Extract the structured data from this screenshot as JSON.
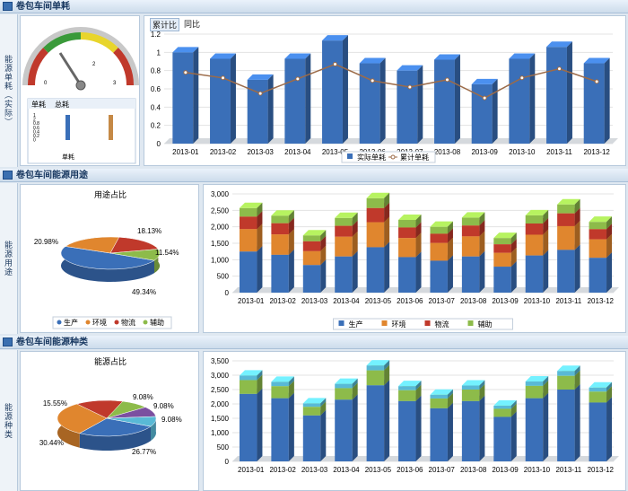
{
  "sections": [
    {
      "title": "卷包车间单耗",
      "side": "能源单耗（实际）"
    },
    {
      "title": "卷包车间能源用途",
      "side": "能源用途"
    },
    {
      "title": "卷包车间能源种类",
      "side": "能源种类"
    }
  ],
  "gauge": {
    "tabs": [
      "单耗",
      "总耗"
    ],
    "mini_label": "单耗",
    "min_label": "0",
    "max_label": "3",
    "mid_label": "2",
    "mini_ticks": [
      "1",
      "2",
      "0.8",
      "0.6",
      "0.4",
      "0.2",
      "0"
    ]
  },
  "top_tabs": [
    "累计比",
    "同比"
  ],
  "months": [
    "2013-01",
    "2013-02",
    "2013-03",
    "2013-04",
    "2013-05",
    "2013-06",
    "2013-07",
    "2013-08",
    "2013-09",
    "2013-10",
    "2013-11",
    "2013-12"
  ],
  "colors": {
    "blue": "#3a6fb8",
    "orange": "#e0862e",
    "red": "#c0392b",
    "green": "#8dbb4a",
    "cyan": "#59b9d6",
    "purple": "#7b4fa0",
    "line": "#9c6b48"
  },
  "chart_data": [
    {
      "type": "bar",
      "categories": [
        "2013-01",
        "2013-02",
        "2013-03",
        "2013-04",
        "2013-05",
        "2013-06",
        "2013-07",
        "2013-08",
        "2013-09",
        "2013-10",
        "2013-11",
        "2013-12"
      ],
      "series": [
        {
          "name": "实际单耗",
          "values": [
            1.0,
            0.93,
            0.7,
            0.93,
            1.13,
            0.88,
            0.8,
            0.92,
            0.65,
            0.93,
            1.06,
            0.88
          ]
        },
        {
          "name": "累计单耗",
          "values": [
            0.78,
            0.72,
            0.55,
            0.71,
            0.87,
            0.69,
            0.62,
            0.7,
            0.5,
            0.72,
            0.82,
            0.68
          ]
        }
      ],
      "yticks": [
        "0",
        "0.2",
        "0.4",
        "0.6",
        "0.8",
        "1",
        "1.2"
      ],
      "ylim": [
        0,
        1.2
      ],
      "legend": [
        "实际单耗",
        "累计单耗"
      ]
    },
    {
      "type": "pie",
      "title": "用途占比",
      "labels": [
        "生产",
        "环境",
        "物流",
        "辅助"
      ],
      "values": [
        49.34,
        20.98,
        18.13,
        11.54
      ],
      "value_labels": [
        "49.34%",
        "20.98%",
        "18.13%",
        "11.54%"
      ]
    },
    {
      "type": "bar",
      "categories": [
        "2013-01",
        "2013-02",
        "2013-03",
        "2013-04",
        "2013-05",
        "2013-06",
        "2013-07",
        "2013-08",
        "2013-09",
        "2013-10",
        "2013-11",
        "2013-12"
      ],
      "series": [
        {
          "name": "生产",
          "values": [
            1250,
            1150,
            840,
            1100,
            1380,
            1080,
            970,
            1100,
            790,
            1130,
            1300,
            1060
          ]
        },
        {
          "name": "环境",
          "values": [
            680,
            620,
            420,
            600,
            760,
            580,
            540,
            610,
            420,
            630,
            720,
            560
          ]
        },
        {
          "name": "物流",
          "values": [
            380,
            340,
            300,
            330,
            430,
            320,
            280,
            330,
            260,
            340,
            390,
            310
          ]
        },
        {
          "name": "辅助",
          "values": [
            260,
            230,
            180,
            240,
            300,
            230,
            210,
            240,
            190,
            250,
            270,
            220
          ]
        }
      ],
      "yticks": [
        "0",
        "500",
        "1,000",
        "1,500",
        "2,000",
        "2,500",
        "3,000"
      ],
      "ylim": [
        0,
        3000
      ],
      "legend": [
        "生产",
        "环境",
        "物流",
        "辅助"
      ]
    },
    {
      "type": "pie",
      "title": "能源占比",
      "values": [
        26.77,
        30.44,
        15.55,
        9.08,
        9.08,
        9.08
      ],
      "value_labels": [
        "26.77%",
        "30.44%",
        "15.55%",
        "9.08%",
        "9.08%",
        "9.08%"
      ]
    },
    {
      "type": "bar",
      "categories": [
        "2013-01",
        "2013-02",
        "2013-03",
        "2013-04",
        "2013-05",
        "2013-06",
        "2013-07",
        "2013-08",
        "2013-09",
        "2013-10",
        "2013-11",
        "2013-12"
      ],
      "series": [
        {
          "values": [
            2350,
            2200,
            1600,
            2150,
            2650,
            2100,
            1850,
            2100,
            1550,
            2200,
            2500,
            2050
          ]
        },
        {
          "values": [
            480,
            420,
            300,
            400,
            520,
            380,
            340,
            400,
            280,
            430,
            480,
            380
          ]
        },
        {
          "values": [
            160,
            150,
            120,
            150,
            170,
            140,
            130,
            140,
            110,
            150,
            170,
            140
          ]
        }
      ],
      "yticks": [
        "0",
        "500",
        "1,000",
        "1,500",
        "2,000",
        "2,500",
        "3,000",
        "3,500"
      ],
      "ylim": [
        0,
        3500
      ]
    }
  ]
}
